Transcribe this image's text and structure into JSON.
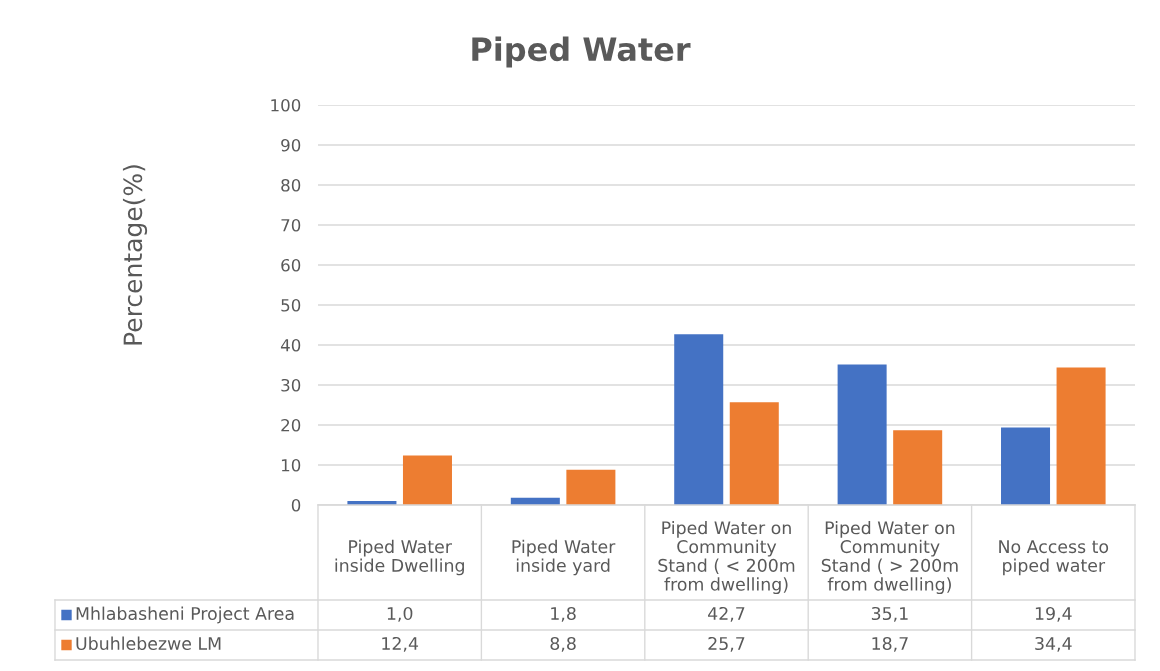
{
  "chart_data": {
    "type": "bar",
    "title": "Piped Water",
    "ylabel": "Percentage(%)",
    "categories": [
      "Piped Water inside Dwelling",
      "Piped Water inside yard",
      "Piped Water on Community Stand ( < 200m from dwelling)",
      "Piped Water on Community Stand ( > 200m from dwelling)",
      "No Access to piped water"
    ],
    "series": [
      {
        "name": "Mhlabasheni Project Area",
        "color": "#4472c4",
        "values": [
          1.0,
          1.8,
          42.7,
          35.1,
          19.4
        ],
        "value_labels": [
          "1,0",
          "1,8",
          "42,7",
          "35,1",
          "19,4"
        ]
      },
      {
        "name": "Ubuhlebezwe LM",
        "color": "#ed7d31",
        "values": [
          12.4,
          8.8,
          25.7,
          18.7,
          34.4
        ],
        "value_labels": [
          "12,4",
          "8,8",
          "25,7",
          "18,7",
          "34,4"
        ]
      }
    ],
    "ylim": [
      0,
      100
    ],
    "yticks": [
      0,
      10,
      20,
      30,
      40,
      50,
      60,
      70,
      80,
      90,
      100
    ],
    "grid": "y",
    "legend": "bottom"
  }
}
